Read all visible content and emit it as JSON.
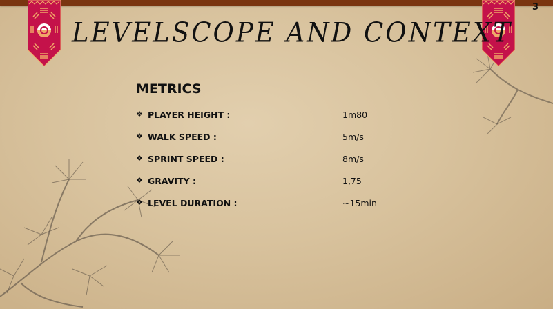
{
  "slide": {
    "title": "LEVELSCOPE AND CONTEXT",
    "page_number": "3",
    "heading": "METRICS",
    "metrics": [
      {
        "label": "PLAYER HEIGHT :",
        "value": "1m80"
      },
      {
        "label": "WALK SPEED :",
        "value": "5m/s"
      },
      {
        "label": "SPRINT SPEED :",
        "value": "8m/s"
      },
      {
        "label": "GRAVITY :",
        "value": "1,75"
      },
      {
        "label": "LEVEL DURATION :",
        "value": "~15min"
      }
    ],
    "bullet_glyph": "❖"
  },
  "colors": {
    "banner": "#c4124a",
    "banner_trim": "#f0a868",
    "top_bar": "#7a3510"
  }
}
